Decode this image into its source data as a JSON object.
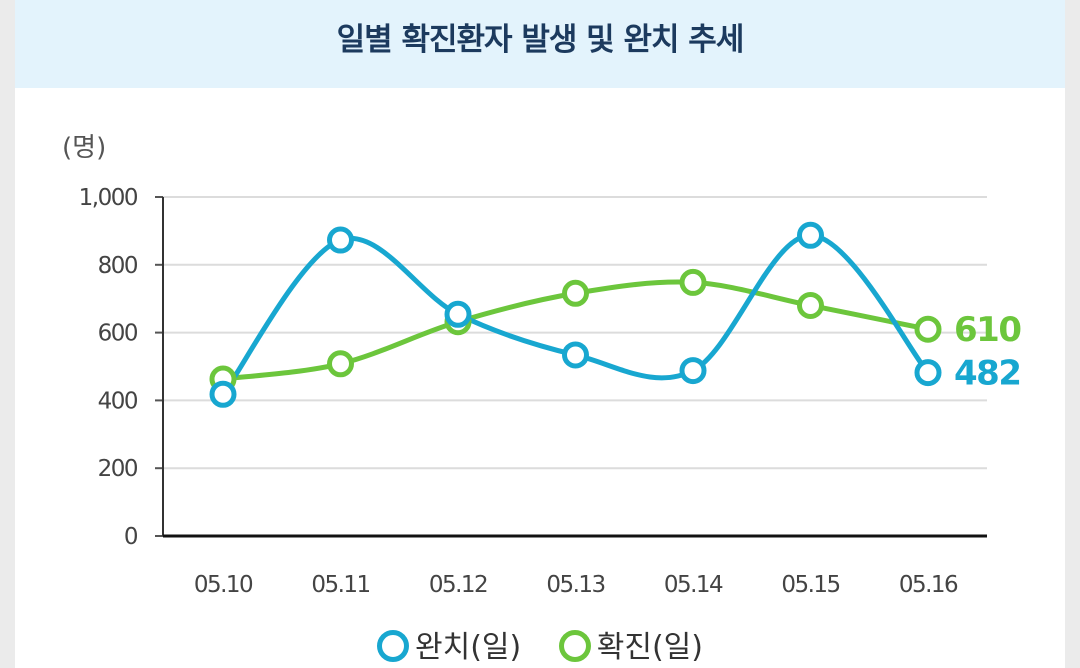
{
  "chart_data": {
    "type": "line",
    "title": "일별 확진환자 발생 및 완치 추세",
    "ylabel": "(명)",
    "xlabel": "",
    "ylim": [
      0,
      1000
    ],
    "yticks": [
      "0",
      "200",
      "400",
      "600",
      "800",
      "1,000"
    ],
    "ytick_values": [
      0,
      200,
      400,
      600,
      800,
      1000
    ],
    "categories": [
      "05.10",
      "05.11",
      "05.12",
      "05.13",
      "05.14",
      "05.15",
      "05.16"
    ],
    "series": [
      {
        "name": "확진(일)",
        "color": "#6cc63c",
        "values": [
          463,
          508,
          632,
          716,
          748,
          680,
          610
        ],
        "end_label": "610"
      },
      {
        "name": "완치(일)",
        "color": "#18a7d0",
        "values": [
          418,
          873,
          654,
          534,
          488,
          887,
          482
        ],
        "end_label": "482"
      }
    ],
    "legend": [
      {
        "label": "완치(일)",
        "color": "#18a7d0"
      },
      {
        "label": "확진(일)",
        "color": "#6cc63c"
      }
    ],
    "grid": true
  }
}
